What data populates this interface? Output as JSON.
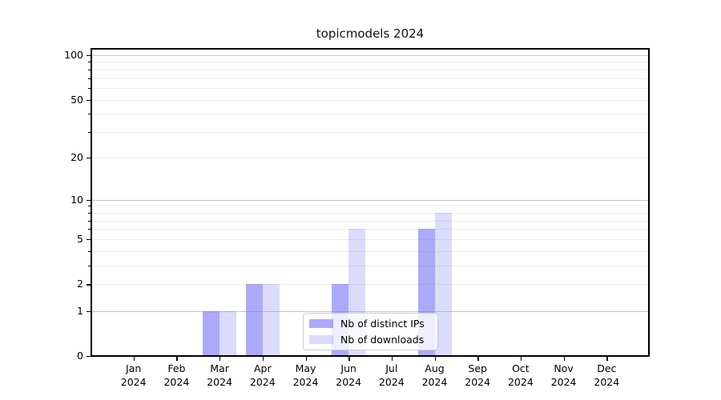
{
  "chart_data": {
    "type": "bar",
    "title": "topicmodels 2024",
    "categories": [
      "Jan",
      "Feb",
      "Mar",
      "Apr",
      "May",
      "Jun",
      "Jul",
      "Aug",
      "Sep",
      "Oct",
      "Nov",
      "Dec"
    ],
    "x_sublabel": "2024",
    "series": [
      {
        "name": "Nb of distinct IPs",
        "color": "rgba(113,113,245,0.60)",
        "values": [
          0,
          0,
          1,
          2,
          0,
          2,
          0,
          6,
          0,
          0,
          0,
          0
        ]
      },
      {
        "name": "Nb of downloads",
        "color": "rgba(113,113,245,0.25)",
        "values": [
          0,
          0,
          1,
          2,
          0,
          6,
          0,
          8,
          0,
          0,
          0,
          0
        ]
      }
    ],
    "y_scale": "log1p",
    "ylim": [
      0,
      110
    ],
    "y_tick_labels": [
      "0",
      "1",
      "2",
      "5",
      "10",
      "20",
      "50",
      "100"
    ],
    "y_tick_values": [
      0,
      1,
      2,
      5,
      10,
      20,
      50,
      100
    ],
    "y_major_grid": [
      1,
      10,
      100
    ],
    "y_minor_grid": [
      2,
      3,
      4,
      5,
      6,
      7,
      8,
      9,
      20,
      30,
      40,
      50,
      60,
      70,
      80,
      90
    ],
    "grid": true,
    "legend_position": "inside-bottom-center"
  },
  "colors": {
    "grid_major": "#c6c6c6",
    "grid_minor": "#ececec",
    "axis": "#000000",
    "legend_border": "#cccccc",
    "background": "#ffffff"
  }
}
